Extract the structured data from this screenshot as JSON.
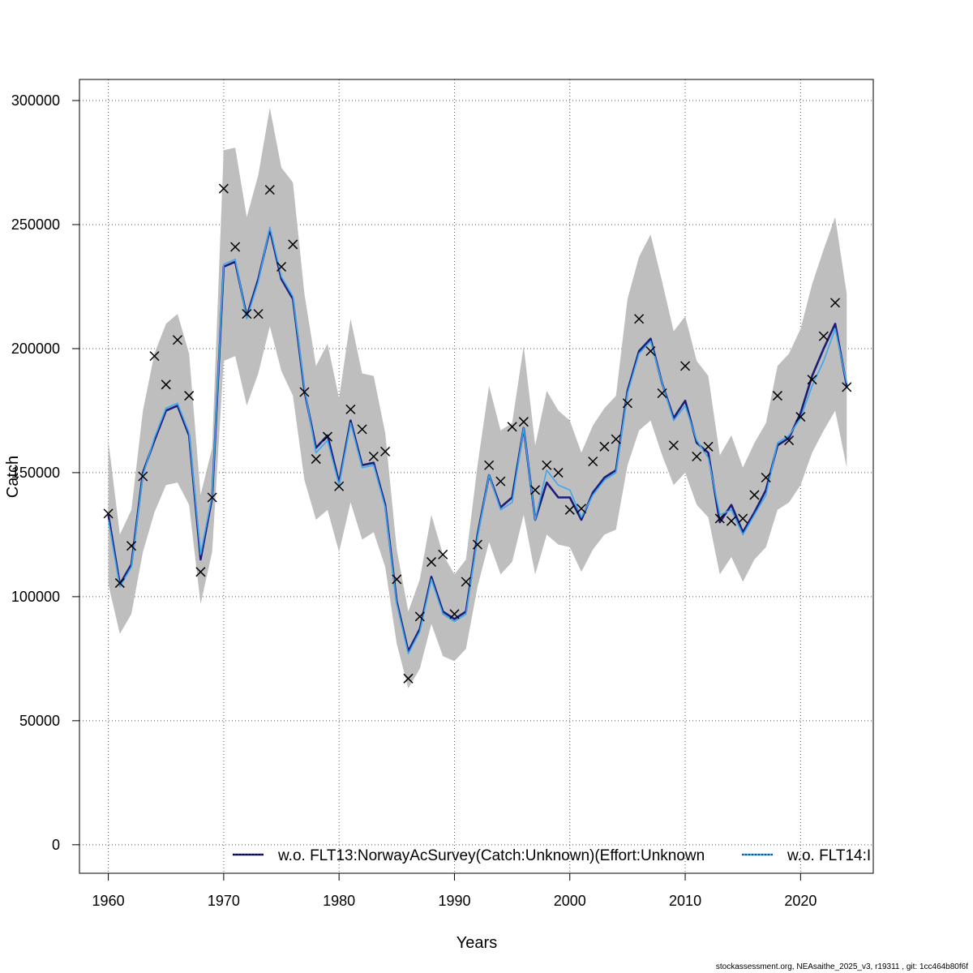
{
  "chart_data": {
    "type": "line",
    "title": "",
    "xlabel": "Years",
    "ylabel": "Catch",
    "xlim": [
      1957.5,
      2026.3
    ],
    "ylim": [
      -11500,
      308500
    ],
    "x_ticks": [
      1960,
      1970,
      1980,
      1990,
      2000,
      2010,
      2020
    ],
    "y_ticks": [
      0,
      50000,
      100000,
      150000,
      200000,
      250000,
      300000
    ],
    "x_tick_labels": [
      "1960",
      "1970",
      "1980",
      "1990",
      "2000",
      "2010",
      "2020"
    ],
    "y_tick_labels": [
      "0",
      "50000",
      "100000",
      "150000",
      "200000",
      "250000",
      "300000"
    ],
    "grid": true,
    "legend_position": "bottom",
    "x": [
      1960,
      1961,
      1962,
      1963,
      1964,
      1965,
      1966,
      1967,
      1968,
      1969,
      1970,
      1971,
      1972,
      1973,
      1974,
      1975,
      1976,
      1977,
      1978,
      1979,
      1980,
      1981,
      1982,
      1983,
      1984,
      1985,
      1986,
      1987,
      1988,
      1989,
      1990,
      1991,
      1992,
      1993,
      1994,
      1995,
      1996,
      1997,
      1998,
      1999,
      2000,
      2001,
      2002,
      2003,
      2004,
      2005,
      2006,
      2007,
      2008,
      2009,
      2010,
      2011,
      2012,
      2013,
      2014,
      2015,
      2016,
      2017,
      2018,
      2019,
      2020,
      2021,
      2022,
      2023,
      2024
    ],
    "band": {
      "color": "#bebebe",
      "upper": [
        163000,
        125000,
        135000,
        175000,
        198000,
        210000,
        214000,
        198000,
        141000,
        160000,
        280000,
        281000,
        253000,
        270000,
        297000,
        273000,
        267000,
        222000,
        193000,
        202000,
        180000,
        212000,
        190000,
        189000,
        166000,
        119000,
        94000,
        107000,
        133000,
        117000,
        109000,
        115000,
        153000,
        185000,
        167000,
        170000,
        201000,
        161000,
        183000,
        175000,
        171000,
        158000,
        169000,
        176000,
        181000,
        220000,
        237000,
        246000,
        227000,
        207000,
        213000,
        195000,
        189000,
        157000,
        165000,
        152000,
        162000,
        170000,
        193000,
        198000,
        208000,
        226000,
        240000,
        253000,
        222000
      ],
      "lower": [
        105000,
        85000,
        93000,
        118000,
        134000,
        145000,
        146000,
        137000,
        97000,
        118000,
        195000,
        197000,
        177000,
        190000,
        209000,
        191000,
        181000,
        147000,
        131000,
        135000,
        118000,
        138000,
        123000,
        126000,
        112000,
        81000,
        63000,
        71000,
        89000,
        76000,
        74000,
        79000,
        104000,
        122000,
        109000,
        114000,
        133000,
        109000,
        125000,
        121000,
        120000,
        110000,
        119000,
        125000,
        127000,
        153000,
        167000,
        171000,
        157000,
        145000,
        150000,
        137000,
        132000,
        109000,
        116000,
        106000,
        115000,
        120000,
        135000,
        138000,
        145000,
        158000,
        167000,
        175000,
        152000
      ]
    },
    "series": [
      {
        "name": "w.o. FLT13:NorwayAcSurvey(Catch:Unknown)(Effort:Unknown",
        "color": "#1c1c7a",
        "values": [
          133000,
          105000,
          113000,
          150000,
          163000,
          175000,
          177000,
          165000,
          115000,
          140000,
          233000,
          235000,
          213000,
          228000,
          248000,
          228000,
          220000,
          183000,
          160000,
          165000,
          146000,
          171000,
          153000,
          154000,
          137000,
          98000,
          78000,
          87000,
          108000,
          94000,
          91000,
          94000,
          125000,
          149000,
          136000,
          140000,
          168000,
          131000,
          146000,
          140000,
          140000,
          131000,
          142000,
          148000,
          151000,
          183000,
          199000,
          204000,
          186000,
          172000,
          179000,
          162000,
          158000,
          130000,
          137000,
          126000,
          134000,
          143000,
          161000,
          164000,
          174000,
          189000,
          200000,
          210000,
          185000
        ]
      },
      {
        "name": "w.o. FLT14:I",
        "color": "#3ba7f0",
        "values": [
          131000,
          104000,
          112000,
          149000,
          164000,
          176000,
          178000,
          166000,
          117000,
          141000,
          234000,
          236000,
          212000,
          227000,
          249000,
          229000,
          221000,
          184000,
          158000,
          163000,
          145000,
          170000,
          152000,
          153000,
          136000,
          97000,
          77000,
          86000,
          107000,
          93000,
          90000,
          93000,
          124000,
          149000,
          135000,
          138000,
          168000,
          131000,
          151000,
          145000,
          143000,
          132000,
          141000,
          147000,
          150000,
          182000,
          198000,
          203000,
          186000,
          171000,
          177000,
          163000,
          156000,
          133000,
          135000,
          125000,
          133000,
          141000,
          162000,
          165000,
          172000,
          185000,
          195000,
          208000,
          186000
        ]
      }
    ],
    "observations": {
      "marker": "x",
      "color": "#000000",
      "values": [
        133500,
        105500,
        120500,
        148500,
        197000,
        185500,
        203500,
        181000,
        110000,
        140000,
        264500,
        241000,
        214000,
        214000,
        264000,
        233000,
        242000,
        182500,
        155500,
        164500,
        144500,
        175500,
        167500,
        156500,
        158500,
        107000,
        67000,
        92000,
        114000,
        117000,
        93000,
        106000,
        121000,
        153000,
        146500,
        168500,
        170500,
        143000,
        153000,
        150000,
        135000,
        135500,
        154500,
        160500,
        163500,
        178000,
        212000,
        199000,
        182000,
        161000,
        193000,
        156500,
        160500,
        131500,
        130500,
        131500,
        141000,
        148000,
        181000,
        163000,
        172500,
        187500,
        205000,
        218500,
        184500
      ]
    },
    "legend": {
      "items": [
        {
          "label": "w.o. FLT13:NorwayAcSurvey(Catch:Unknown)(Effort:Unknown",
          "color": "#1c1c7a"
        },
        {
          "label": "w.o. FLT14:I",
          "color": "#3ba7f0"
        }
      ]
    }
  },
  "footer": {
    "text": "stockassessment.org, NEAsaithe_2025_v3, r19311 , git: 1cc464b80f6f"
  }
}
